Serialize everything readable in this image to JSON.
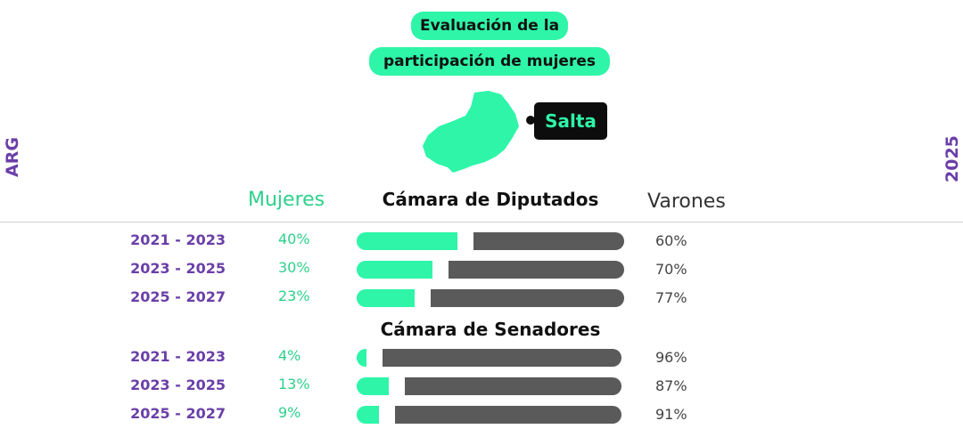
{
  "header": {
    "title_line1": "Evaluación de la",
    "title_line2": "participación de mujeres",
    "province": "Salta"
  },
  "side": {
    "left": "ARG",
    "right": "2025"
  },
  "columns": {
    "women": "Mujeres",
    "men": "Varones"
  },
  "colors": {
    "women": "#2ef5a8",
    "men": "#5a5a5a",
    "accent": "#6a3fa8"
  },
  "chart_data": [
    {
      "type": "bar",
      "title": "Cámara de Diputados",
      "categories": [
        "2021 - 2023",
        "2023 - 2025",
        "2025 - 2027"
      ],
      "series": [
        {
          "name": "Mujeres",
          "values": [
            40,
            30,
            23
          ],
          "labels": [
            "40%",
            "30%",
            "23%"
          ]
        },
        {
          "name": "Varones",
          "values": [
            60,
            70,
            77
          ],
          "labels": [
            "60%",
            "70%",
            "77%"
          ]
        }
      ]
    },
    {
      "type": "bar",
      "title": "Cámara de Senadores",
      "categories": [
        "2021 - 2023",
        "2023 - 2025",
        "2025 - 2027"
      ],
      "series": [
        {
          "name": "Mujeres",
          "values": [
            4,
            13,
            9
          ],
          "labels": [
            "4%",
            "13%",
            "9%"
          ]
        },
        {
          "name": "Varones",
          "values": [
            96,
            87,
            91
          ],
          "labels": [
            "96%",
            "87%",
            "91%"
          ]
        }
      ]
    }
  ]
}
